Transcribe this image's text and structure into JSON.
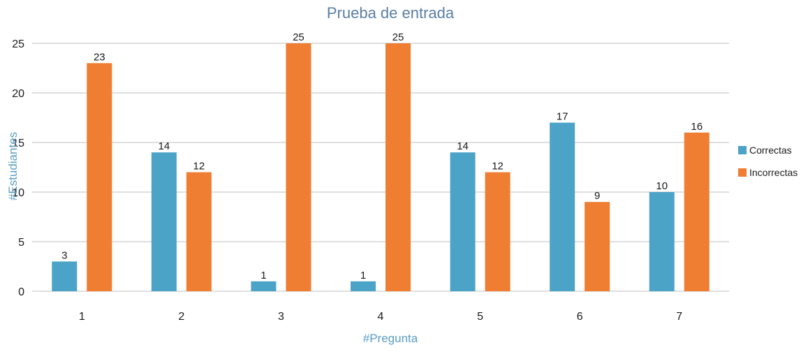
{
  "chart_data": {
    "type": "bar",
    "title": "Prueba de entrada",
    "xlabel": "#Pregunta",
    "ylabel": "#Estudiantes",
    "categories": [
      "1",
      "2",
      "3",
      "4",
      "5",
      "6",
      "7"
    ],
    "series": [
      {
        "name": "Correctas",
        "color": "#4ba3c7",
        "values": [
          3,
          14,
          1,
          1,
          14,
          17,
          10
        ]
      },
      {
        "name": "Incorrectas",
        "color": "#ef7d32",
        "values": [
          23,
          12,
          25,
          25,
          12,
          9,
          16
        ]
      }
    ],
    "ylim": [
      0,
      25
    ],
    "yticks": [
      0,
      5,
      10,
      15,
      20,
      25
    ],
    "grid": true,
    "legend_position": "right"
  }
}
